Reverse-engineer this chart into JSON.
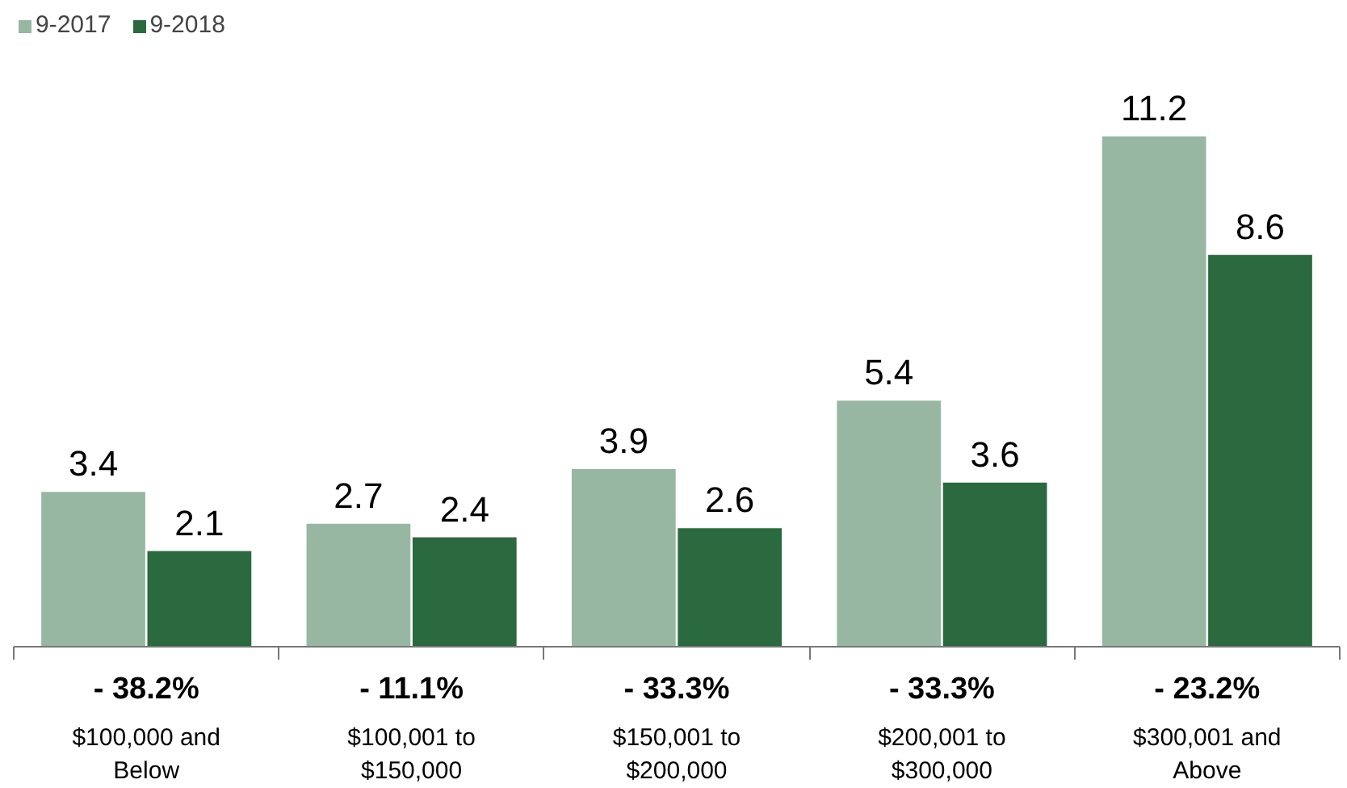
{
  "chart_data": {
    "type": "bar",
    "categories": [
      "$100,000 and\nBelow",
      "$100,001 to\n$150,000",
      "$150,001 to\n$200,000",
      "$200,001 to\n$300,000",
      "$300,001 and\nAbove"
    ],
    "series": [
      {
        "name": "9-2017",
        "color": "#97b7a2",
        "values": [
          3.4,
          2.7,
          3.9,
          5.4,
          11.2
        ]
      },
      {
        "name": "9-2018",
        "color": "#2a6a3e",
        "values": [
          2.1,
          2.4,
          2.6,
          3.6,
          8.6
        ]
      }
    ],
    "data_labels": true,
    "legend": "top left",
    "grid": false,
    "annotations": [
      "- 38.2%",
      "- 11.1%",
      "- 33.3%",
      "- 33.3%",
      "- 23.2%"
    ]
  }
}
